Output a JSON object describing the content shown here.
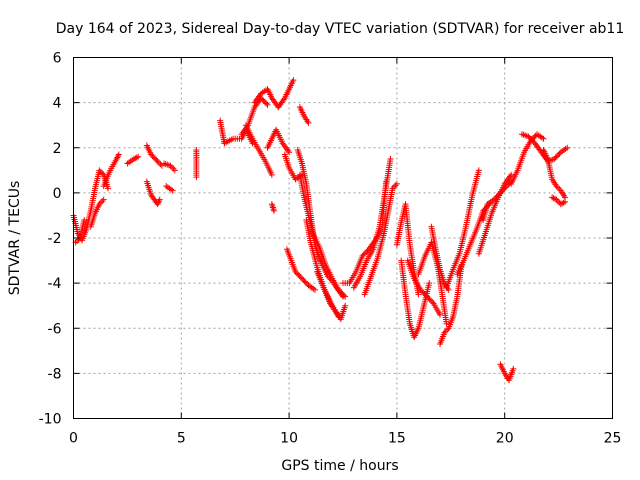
{
  "chart_data": {
    "type": "scatter",
    "title": "Day 164 of 2023, Sidereal Day-to-day VTEC variation (SDTVAR) for receiver ab11",
    "xlabel": "GPS time / hours",
    "ylabel": "SDTVAR / TECUs",
    "xlim": [
      0,
      25
    ],
    "ylim": [
      -10,
      6
    ],
    "xticks": [
      0,
      5,
      10,
      15,
      20,
      25
    ],
    "yticks": [
      -10,
      -8,
      -6,
      -4,
      -2,
      0,
      2,
      4,
      6
    ],
    "grid": true,
    "marker": "+",
    "color": "#ff0000",
    "series": [
      {
        "name": "ab11",
        "tracks": [
          {
            "x": [
              0.0,
              0.2,
              0.4,
              0.6,
              0.8,
              1.0,
              1.2,
              1.4,
              1.6
            ],
            "y": [
              -1.0,
              -1.8,
              -2.1,
              -1.6,
              -0.8,
              0.2,
              1.0,
              0.8,
              0.2
            ]
          },
          {
            "x": [
              0.1,
              0.3,
              0.5
            ],
            "y": [
              -2.2,
              -2.0,
              -1.2
            ]
          },
          {
            "x": [
              0.8,
              1.0,
              1.2,
              1.4
            ],
            "y": [
              -1.5,
              -0.9,
              -0.5,
              -0.3
            ]
          },
          {
            "x": [
              1.4,
              1.7,
              2.0,
              2.1
            ],
            "y": [
              0.3,
              1.0,
              1.5,
              1.7
            ]
          },
          {
            "x": [
              2.5,
              2.8,
              3.0
            ],
            "y": [
              1.3,
              1.5,
              1.6
            ]
          },
          {
            "x": [
              3.4,
              3.6,
              3.9,
              4.1
            ],
            "y": [
              2.1,
              1.7,
              1.4,
              1.2
            ]
          },
          {
            "x": [
              3.4,
              3.6,
              3.9,
              4.0
            ],
            "y": [
              0.5,
              -0.1,
              -0.5,
              -0.3
            ]
          },
          {
            "x": [
              4.2,
              4.5,
              4.7
            ],
            "y": [
              1.3,
              1.2,
              1.0
            ]
          },
          {
            "x": [
              4.3,
              4.6
            ],
            "y": [
              0.3,
              0.1
            ]
          },
          {
            "x": [
              5.7,
              5.7,
              5.7
            ],
            "y": [
              1.9,
              1.5,
              0.7
            ]
          },
          {
            "x": [
              6.8,
              6.9,
              7.0
            ],
            "y": [
              3.2,
              2.7,
              2.2
            ]
          },
          {
            "x": [
              7.0,
              7.4,
              7.8,
              8.0,
              8.3
            ],
            "y": [
              2.2,
              2.4,
              2.4,
              2.8,
              2.2
            ]
          },
          {
            "x": [
              7.8,
              8.1,
              8.4,
              8.7,
              9.0
            ],
            "y": [
              2.6,
              3.0,
              3.8,
              4.2,
              3.9
            ]
          },
          {
            "x": [
              8.4,
              8.7,
              9.0,
              9.2,
              9.5
            ],
            "y": [
              4.0,
              4.4,
              4.6,
              4.2,
              3.8
            ]
          },
          {
            "x": [
              8.0,
              8.3,
              8.6,
              8.9,
              9.2
            ],
            "y": [
              3.0,
              2.4,
              1.9,
              1.4,
              0.8
            ]
          },
          {
            "x": [
              9.5,
              9.8,
              10.0,
              10.2
            ],
            "y": [
              3.8,
              4.2,
              4.6,
              5.0
            ]
          },
          {
            "x": [
              9.0,
              9.4,
              9.7,
              10.0
            ],
            "y": [
              2.0,
              2.8,
              2.2,
              1.8
            ]
          },
          {
            "x": [
              9.2,
              9.3
            ],
            "y": [
              -0.5,
              -0.8
            ]
          },
          {
            "x": [
              9.8,
              10.0,
              10.3,
              10.6
            ],
            "y": [
              1.7,
              1.1,
              0.6,
              0.8
            ]
          },
          {
            "x": [
              10.5,
              10.7,
              10.9
            ],
            "y": [
              3.8,
              3.4,
              3.1
            ]
          },
          {
            "x": [
              10.4,
              10.6,
              10.8,
              11.0,
              11.2,
              11.4,
              11.6,
              11.8,
              12.0,
              12.2,
              12.5
            ],
            "y": [
              1.9,
              1.3,
              0.4,
              -1.0,
              -2.3,
              -2.9,
              -3.3,
              -3.7,
              -3.9,
              -4.2,
              -4.6
            ]
          },
          {
            "x": [
              10.5,
              10.7,
              10.9,
              11.1,
              11.4,
              11.7,
              12.0,
              12.3,
              12.6
            ],
            "y": [
              0.8,
              -0.2,
              -1.0,
              -1.8,
              -2.4,
              -3.2,
              -3.8,
              -4.3,
              -4.6
            ]
          },
          {
            "x": [
              10.8,
              11.0,
              11.3,
              11.6,
              12.0,
              12.3
            ],
            "y": [
              -1.2,
              -2.2,
              -3.3,
              -4.2,
              -5.0,
              -5.5
            ]
          },
          {
            "x": [
              9.9,
              10.1,
              10.3,
              10.6,
              10.9,
              11.2
            ],
            "y": [
              -2.5,
              -3.0,
              -3.5,
              -3.8,
              -4.1,
              -4.3
            ]
          },
          {
            "x": [
              11.3,
              11.6,
              11.9,
              12.2,
              12.4,
              12.6
            ],
            "y": [
              -3.5,
              -4.2,
              -4.9,
              -5.3,
              -5.6,
              -5.0
            ]
          },
          {
            "x": [
              12.5,
              12.8,
              13.1,
              13.4,
              13.7,
              14.0,
              14.3,
              14.5
            ],
            "y": [
              -4.0,
              -4.0,
              -3.5,
              -2.8,
              -2.5,
              -2.1,
              -1.6,
              0.5
            ]
          },
          {
            "x": [
              13.0,
              13.3,
              13.6,
              13.9,
              14.2,
              14.5,
              14.7
            ],
            "y": [
              -4.2,
              -3.7,
              -3.0,
              -2.5,
              -1.5,
              0.3,
              1.5
            ]
          },
          {
            "x": [
              13.5,
              13.8,
              14.1,
              14.4,
              14.6,
              14.8,
              15.0
            ],
            "y": [
              -4.5,
              -3.7,
              -2.9,
              -1.8,
              -0.8,
              0.2,
              0.4
            ]
          },
          {
            "x": [
              15.0,
              15.2,
              15.4,
              15.6,
              15.8,
              16.0
            ],
            "y": [
              -2.3,
              -1.3,
              -0.5,
              -2.3,
              -3.5,
              -4.5
            ]
          },
          {
            "x": [
              15.2,
              15.4,
              15.6,
              15.8,
              16.0,
              16.2,
              16.5
            ],
            "y": [
              -3.0,
              -4.5,
              -5.8,
              -6.4,
              -6.0,
              -5.2,
              -4.0
            ]
          },
          {
            "x": [
              15.5,
              15.8,
              16.1,
              16.4,
              16.7,
              17.0
            ],
            "y": [
              -3.0,
              -3.8,
              -4.3,
              -4.6,
              -4.9,
              -5.4
            ]
          },
          {
            "x": [
              16.0,
              16.3,
              16.6,
              16.9,
              17.1,
              17.3
            ],
            "y": [
              -3.6,
              -2.8,
              -2.2,
              -3.3,
              -4.5,
              -5.8
            ]
          },
          {
            "x": [
              16.6,
              16.8,
              17.0,
              17.2,
              17.4
            ],
            "y": [
              -1.5,
              -2.5,
              -3.4,
              -4.0,
              -4.3
            ]
          },
          {
            "x": [
              17.0,
              17.2,
              17.4,
              17.6,
              17.8,
              18.0
            ],
            "y": [
              -6.7,
              -6.2,
              -6.0,
              -5.5,
              -4.6,
              -3.2
            ]
          },
          {
            "x": [
              17.3,
              17.6,
              17.9,
              18.2,
              18.5,
              18.8
            ],
            "y": [
              -4.2,
              -3.4,
              -2.7,
              -1.5,
              -0.1,
              1.0
            ]
          },
          {
            "x": [
              17.8,
              18.1,
              18.4,
              18.7,
              19.0,
              19.3
            ],
            "y": [
              -3.6,
              -3.0,
              -2.3,
              -1.6,
              -0.8,
              -0.5
            ]
          },
          {
            "x": [
              18.8,
              19.1,
              19.4,
              19.7,
              20.0,
              20.3
            ],
            "y": [
              -2.7,
              -1.8,
              -0.9,
              -0.2,
              0.4,
              0.8
            ]
          },
          {
            "x": [
              19.0,
              19.2,
              19.5,
              19.8,
              20.1,
              20.3
            ],
            "y": [
              -1.2,
              -0.5,
              -0.3,
              0.0,
              0.3,
              0.5
            ]
          },
          {
            "x": [
              19.8,
              20.0,
              20.2,
              20.4
            ],
            "y": [
              -7.6,
              -8.0,
              -8.3,
              -7.8
            ]
          },
          {
            "x": [
              20.3,
              20.6,
              20.9,
              21.2,
              21.5,
              21.8
            ],
            "y": [
              0.4,
              1.0,
              1.8,
              2.3,
              2.6,
              2.4
            ]
          },
          {
            "x": [
              20.8,
              21.1,
              21.4,
              21.7,
              22.0,
              22.3,
              22.6,
              22.9
            ],
            "y": [
              2.6,
              2.5,
              2.2,
              1.8,
              1.4,
              1.5,
              1.8,
              2.0
            ]
          },
          {
            "x": [
              21.8,
              22.0,
              22.2,
              22.4,
              22.6,
              22.8
            ],
            "y": [
              1.9,
              1.5,
              0.6,
              0.3,
              0.1,
              -0.2
            ]
          },
          {
            "x": [
              22.2,
              22.4,
              22.6,
              22.8
            ],
            "y": [
              -0.2,
              -0.3,
              -0.5,
              -0.4
            ]
          }
        ]
      }
    ]
  }
}
